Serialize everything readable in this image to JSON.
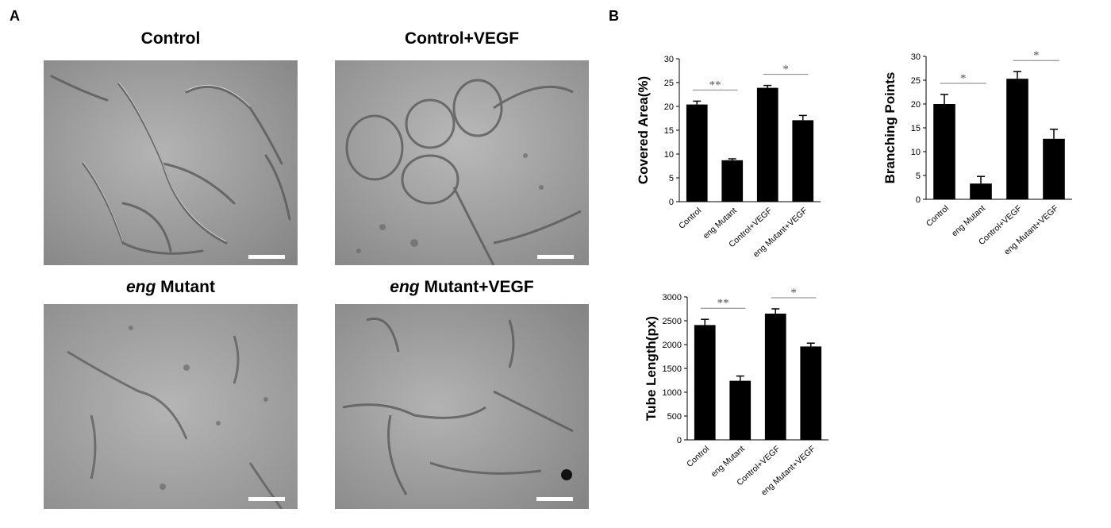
{
  "panels": {
    "a_label": "A",
    "b_label": "B"
  },
  "micrographs": [
    {
      "title_plain": "Control",
      "title_italic": ""
    },
    {
      "title_plain": "Control+VEGF",
      "title_italic": ""
    },
    {
      "title_plain": " Mutant",
      "title_italic": "eng"
    },
    {
      "title_plain": " Mutant+VEGF",
      "title_italic": "eng"
    }
  ],
  "colors": {
    "bar": "#000000",
    "sig_line": "#7f7f7f",
    "micrograph_bg": "#a9a9a9"
  },
  "chart_data": [
    {
      "type": "bar",
      "categories": [
        "Control",
        "eng Mutant",
        "Control+VEGF",
        "eng Mutant+VEGF"
      ],
      "values": [
        20.4,
        8.7,
        23.9,
        17.1
      ],
      "errors": [
        0.7,
        0.3,
        0.5,
        1.0
      ],
      "ylabel": "Covered Area(%)",
      "ylim": [
        0,
        30
      ],
      "yticks": [
        0,
        5,
        10,
        15,
        20,
        25,
        30
      ],
      "significance": [
        {
          "from": 0,
          "to": 1,
          "label": "**"
        },
        {
          "from": 2,
          "to": 3,
          "label": "*"
        }
      ]
    },
    {
      "type": "bar",
      "categories": [
        "Control",
        "eng Mutant",
        "Control+VEGF",
        "eng Mutant+VEGF"
      ],
      "values": [
        20.0,
        3.3,
        25.3,
        12.7
      ],
      "errors": [
        2.0,
        1.5,
        1.5,
        2.0
      ],
      "ylabel": "Branching Points",
      "ylim": [
        0,
        30
      ],
      "yticks": [
        0,
        5,
        10,
        15,
        20,
        25,
        30
      ],
      "significance": [
        {
          "from": 0,
          "to": 1,
          "label": "*"
        },
        {
          "from": 2,
          "to": 3,
          "label": "*"
        }
      ]
    },
    {
      "type": "bar",
      "categories": [
        "Control",
        "eng Mutant",
        "Control+VEGF",
        "eng Mutant+VEGF"
      ],
      "values": [
        2410,
        1240,
        2650,
        1960
      ],
      "errors": [
        120,
        100,
        100,
        70
      ],
      "ylabel": "Tube Length(px)",
      "ylim": [
        0,
        3000
      ],
      "yticks": [
        0,
        500,
        1000,
        1500,
        2000,
        2500,
        3000
      ],
      "significance": [
        {
          "from": 0,
          "to": 1,
          "label": "**"
        },
        {
          "from": 2,
          "to": 3,
          "label": "*"
        }
      ]
    }
  ]
}
